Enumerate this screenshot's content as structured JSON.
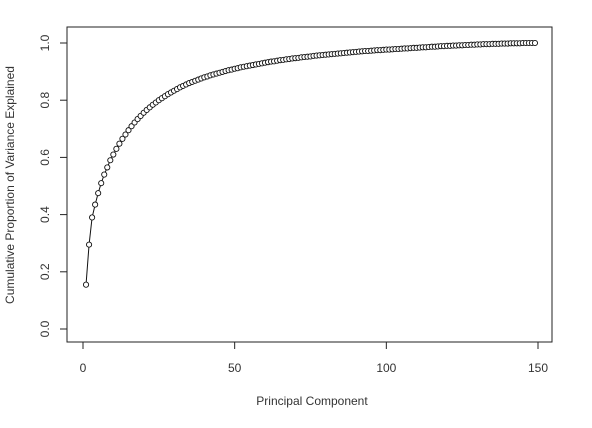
{
  "chart_data": {
    "type": "scatter",
    "xlabel": "Principal Component",
    "ylabel": "Cumulative Proportion of Variance Explained",
    "xlim": [
      0,
      150
    ],
    "ylim": [
      0,
      1
    ],
    "x_ticks": [
      0,
      50,
      100,
      150
    ],
    "x_tick_labels": [
      "0",
      "50",
      "100",
      "150"
    ],
    "y_ticks": [
      0.0,
      0.2,
      0.4,
      0.6,
      0.8,
      1.0
    ],
    "y_tick_labels": [
      "0.0",
      "0.2",
      "0.4",
      "0.6",
      "0.8",
      "1.0"
    ],
    "grid": false,
    "series": [
      {
        "x": [
          1,
          2,
          3,
          4,
          5,
          6,
          7,
          8,
          9,
          10,
          11,
          12,
          13,
          14,
          15,
          16,
          17,
          18,
          19,
          20,
          21,
          22,
          23,
          24,
          25,
          26,
          27,
          28,
          29,
          30,
          31,
          32,
          33,
          34,
          35,
          36,
          37,
          38,
          39,
          40,
          41,
          42,
          43,
          44,
          45,
          46,
          47,
          48,
          49,
          50,
          51,
          52,
          53,
          54,
          55,
          56,
          57,
          58,
          59,
          60,
          61,
          62,
          63,
          64,
          65,
          66,
          67,
          68,
          69,
          70,
          71,
          72,
          73,
          74,
          75,
          76,
          77,
          78,
          79,
          80,
          81,
          82,
          83,
          84,
          85,
          86,
          87,
          88,
          89,
          90,
          91,
          92,
          93,
          94,
          95,
          96,
          97,
          98,
          99,
          100,
          101,
          102,
          103,
          104,
          105,
          106,
          107,
          108,
          109,
          110,
          111,
          112,
          113,
          114,
          115,
          116,
          117,
          118,
          119,
          120,
          121,
          122,
          123,
          124,
          125,
          126,
          127,
          128,
          129,
          130,
          131,
          132,
          133,
          134,
          135,
          136,
          137,
          138,
          139,
          140,
          141,
          142,
          143,
          144,
          145,
          146,
          147,
          148,
          149
        ],
        "values": [
          0.155,
          0.295,
          0.39,
          0.435,
          0.475,
          0.51,
          0.54,
          0.565,
          0.59,
          0.61,
          0.63,
          0.648,
          0.665,
          0.68,
          0.695,
          0.709,
          0.722,
          0.734,
          0.745,
          0.756,
          0.766,
          0.775,
          0.784,
          0.792,
          0.8,
          0.807,
          0.814,
          0.821,
          0.827,
          0.833,
          0.839,
          0.845,
          0.85,
          0.855,
          0.86,
          0.864,
          0.868,
          0.872,
          0.876,
          0.88,
          0.883,
          0.887,
          0.89,
          0.893,
          0.896,
          0.899,
          0.902,
          0.905,
          0.907,
          0.91,
          0.912,
          0.915,
          0.917,
          0.919,
          0.921,
          0.923,
          0.925,
          0.927,
          0.929,
          0.931,
          0.933,
          0.935,
          0.936,
          0.938,
          0.94,
          0.941,
          0.943,
          0.944,
          0.946,
          0.947,
          0.948,
          0.95,
          0.951,
          0.952,
          0.953,
          0.955,
          0.956,
          0.957,
          0.958,
          0.959,
          0.96,
          0.961,
          0.962,
          0.963,
          0.964,
          0.965,
          0.966,
          0.967,
          0.968,
          0.969,
          0.97,
          0.971,
          0.972,
          0.972,
          0.973,
          0.974,
          0.975,
          0.975,
          0.976,
          0.977,
          0.977,
          0.978,
          0.979,
          0.979,
          0.98,
          0.981,
          0.981,
          0.982,
          0.983,
          0.983,
          0.984,
          0.985,
          0.985,
          0.986,
          0.987,
          0.987,
          0.988,
          0.989,
          0.989,
          0.99,
          0.99,
          0.991,
          0.991,
          0.992,
          0.992,
          0.993,
          0.993,
          0.994,
          0.994,
          0.995,
          0.995,
          0.996,
          0.996,
          0.996,
          0.997,
          0.997,
          0.997,
          0.998,
          0.998,
          0.998,
          0.999,
          0.999,
          0.999,
          0.999,
          1.0,
          1.0,
          1.0,
          1.0,
          1.0
        ]
      }
    ]
  }
}
